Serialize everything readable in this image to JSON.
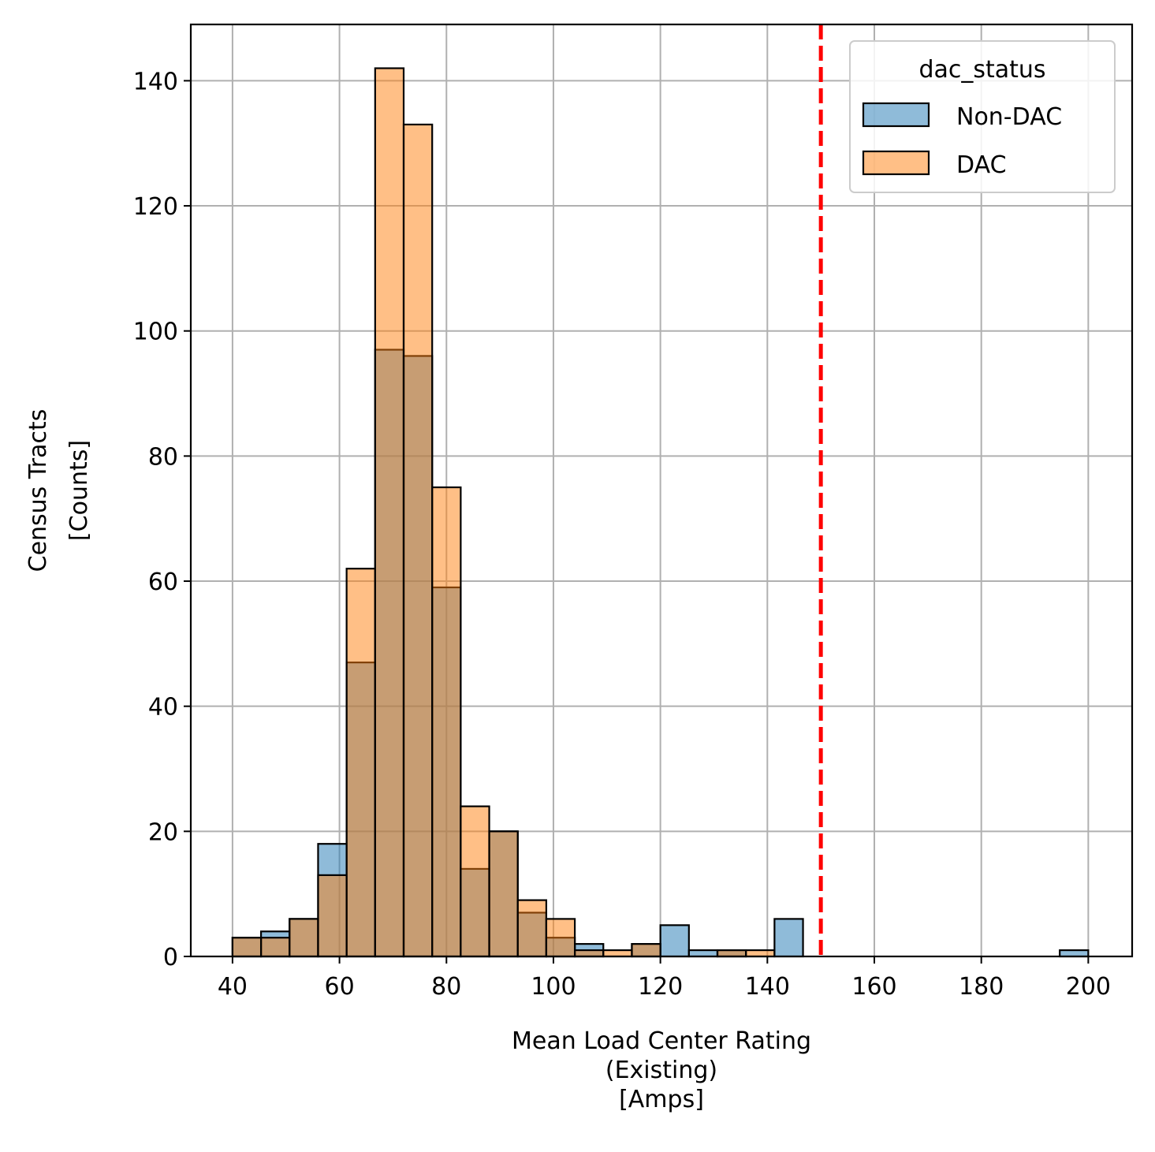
{
  "chart_data": {
    "type": "bar",
    "subtype": "overlapping-histogram",
    "xlabel_lines": [
      "Mean Load Center Rating",
      "(Existing)",
      "[Amps]"
    ],
    "ylabel_lines": [
      "Census Tracts",
      "[Counts]"
    ],
    "xlim": [
      32.2,
      208.2
    ],
    "ylim": [
      0,
      149
    ],
    "x_ticks": [
      40,
      60,
      80,
      100,
      120,
      140,
      160,
      180,
      200
    ],
    "y_ticks": [
      0,
      20,
      40,
      60,
      80,
      100,
      120,
      140
    ],
    "grid": true,
    "bin_edges": [
      40,
      45.333,
      50.667,
      56,
      61.333,
      66.667,
      72,
      77.333,
      82.667,
      88,
      93.333,
      98.667,
      104,
      109.333,
      114.667,
      120,
      125.333,
      130.667,
      136,
      141.333,
      146.667,
      152,
      157.333,
      162.667,
      168,
      173.333,
      178.667,
      184,
      189.333,
      194.667,
      200
    ],
    "series": [
      {
        "name": "Non-DAC",
        "color": "#1f77b4",
        "values": [
          3,
          4,
          6,
          18,
          47,
          97,
          96,
          59,
          14,
          20,
          7,
          3,
          2,
          0,
          2,
          5,
          1,
          1,
          0,
          6,
          0,
          0,
          0,
          0,
          0,
          0,
          0,
          0,
          0,
          1
        ]
      },
      {
        "name": "DAC",
        "color": "#ff7f0e",
        "values": [
          3,
          3,
          6,
          13,
          62,
          142,
          133,
          75,
          24,
          20,
          9,
          6,
          1,
          1,
          2,
          0,
          0,
          1,
          1,
          0,
          0,
          0,
          0,
          0,
          0,
          0,
          0,
          0,
          0,
          0
        ]
      }
    ],
    "reference_line": {
      "x": 150,
      "color": "#ff0000",
      "style": "dashed"
    },
    "legend": {
      "title": "dac_status",
      "position": "top-right"
    }
  }
}
